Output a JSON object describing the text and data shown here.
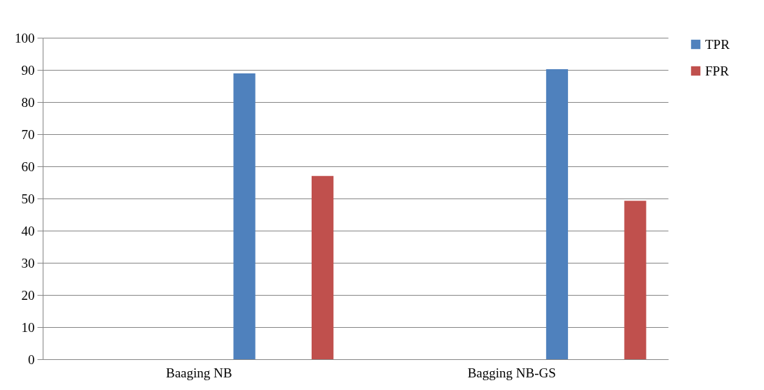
{
  "chart_data": {
    "type": "bar",
    "categories": [
      "Baaging NB",
      "Bagging NB-GS"
    ],
    "series": [
      {
        "name": "TPR",
        "color": "#4f81bd",
        "values": [
          88.9,
          90.2
        ]
      },
      {
        "name": "FPR",
        "color": "#c0504d",
        "values": [
          57,
          49.3
        ]
      }
    ],
    "ylim": [
      0,
      100
    ],
    "yticks": [
      0,
      10,
      20,
      30,
      40,
      50,
      60,
      70,
      80,
      90,
      100
    ],
    "grid": "y",
    "legend": "right"
  }
}
